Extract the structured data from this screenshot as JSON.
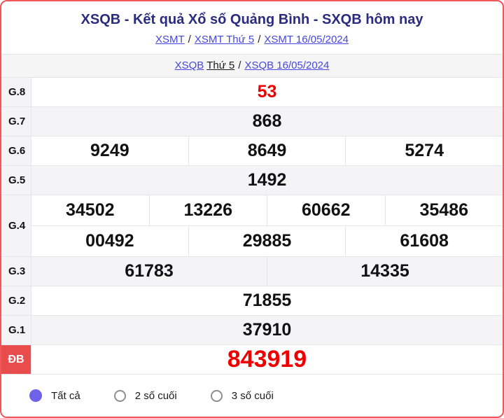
{
  "header": {
    "title": "XSQB - Kết quả Xổ số Quảng Bình - SXQB hôm nay",
    "breadcrumb": {
      "separator": "/",
      "items": [
        "XSMT",
        "XSMT Thứ 5",
        "XSMT 16/05/2024"
      ]
    },
    "sub_breadcrumb": {
      "region_link": "XSQB",
      "day_text": "Thứ 5",
      "separator": "/",
      "date_link": "XSQB 16/05/2024"
    }
  },
  "results": {
    "rows": [
      {
        "label": "G.8",
        "numbers": [
          "53"
        ]
      },
      {
        "label": "G.7",
        "numbers": [
          "868"
        ]
      },
      {
        "label": "G.6",
        "numbers": [
          "9249",
          "8649",
          "5274"
        ]
      },
      {
        "label": "G.5",
        "numbers": [
          "1492"
        ]
      },
      {
        "label": "G.4",
        "lines": [
          [
            "34502",
            "13226",
            "60662",
            "35486"
          ],
          [
            "00492",
            "29885",
            "61608"
          ]
        ]
      },
      {
        "label": "G.3",
        "numbers": [
          "61783",
          "14335"
        ]
      },
      {
        "label": "G.2",
        "numbers": [
          "71855"
        ]
      },
      {
        "label": "G.1",
        "numbers": [
          "37910"
        ]
      },
      {
        "label": "ĐB",
        "numbers": [
          "843919"
        ]
      }
    ]
  },
  "filter": {
    "options": [
      {
        "label": "Tất cả",
        "selected": true
      },
      {
        "label": "2 số cuối",
        "selected": false
      },
      {
        "label": "3 số cuối",
        "selected": false
      }
    ]
  },
  "colors": {
    "card_border_red": "#f15659",
    "special_label_red": "#e94c4d",
    "number_red": "#ee0000",
    "title_navy": "#2b2b80",
    "link_blue": "#4646e0",
    "row_gray": "#f4f4f6",
    "radio_purple": "#6e63e8"
  }
}
